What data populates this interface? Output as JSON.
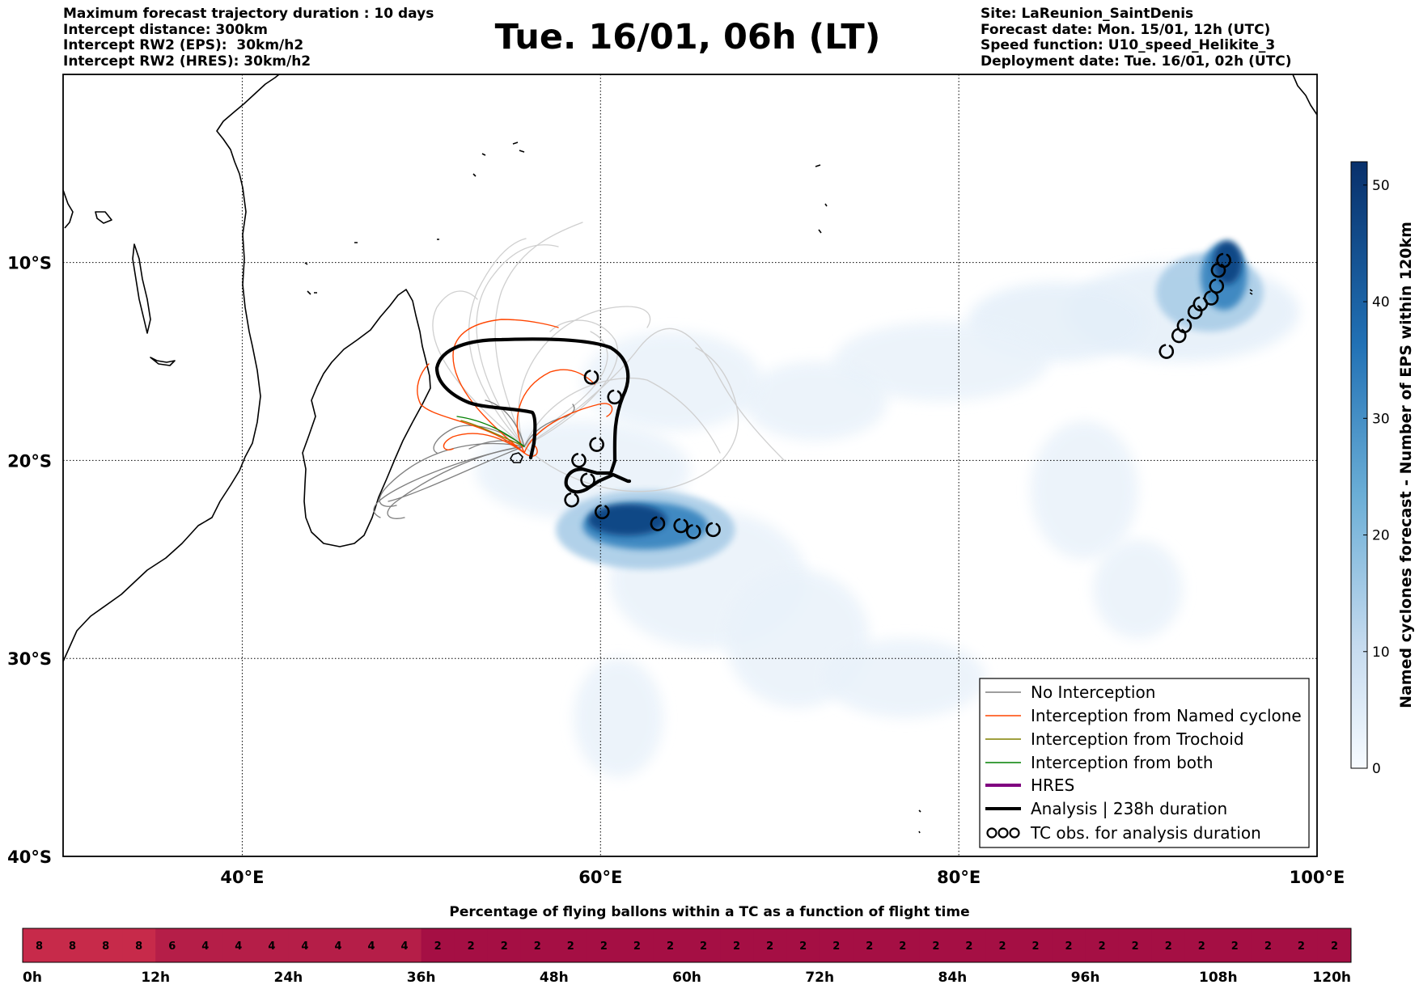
{
  "header_left": [
    "Maximum forecast trajectory duration : 10 days",
    "Intercept distance: 300km",
    "Intercept RW2 (EPS):  30km/h2",
    "Intercept RW2 (HRES): 30km/h2"
  ],
  "header_right": [
    "Site: LaReunion_SaintDenis",
    "Forecast date: Mon. 15/01, 12h (UTC)",
    "Speed function: U10_speed_Helikite_3",
    "Deployment date: Tue. 16/01, 02h (UTC)"
  ],
  "title": "Tue. 16/01, 06h (LT)",
  "colors": {
    "no_interception": "#7f7f7f",
    "named_cyclone": "#ff4500",
    "trochoid": "#808000",
    "both": "#008000",
    "hres": "#800080",
    "analysis": "#000000",
    "density_low": "#dbe9f6",
    "density_high": "#08306b",
    "bar_high": "#c72a4a",
    "bar_mid": "#b51e48",
    "bar_low": "#a50f44"
  },
  "chart_data": [
    {
      "type": "heatmap",
      "xlabel": "",
      "ylabel": "",
      "x_ticks": [
        "40°E",
        "60°E",
        "80°E",
        "100°E"
      ],
      "y_ticks": [
        "10°S",
        "20°S",
        "30°S",
        "40°S"
      ],
      "xlim": [
        30,
        100
      ],
      "ylim": [
        -40,
        -0.5
      ],
      "grid": true,
      "colorbar": {
        "label": "Named cyclones forecast - Number of EPS within 120km",
        "ticks": [
          "0",
          "10",
          "20",
          "30",
          "40",
          "50"
        ],
        "range": [
          0,
          52
        ]
      },
      "density_blobs": [
        {
          "lon": 92.5,
          "lat": -12.5,
          "rx": 6.5,
          "ry": 2.5,
          "value": 4
        },
        {
          "lon": 85.5,
          "lat": -13.0,
          "rx": 5.0,
          "ry": 2.0,
          "value": 4
        },
        {
          "lon": 79.0,
          "lat": -15.0,
          "rx": 6.0,
          "ry": 2.0,
          "value": 3
        },
        {
          "lon": 72.0,
          "lat": -17.0,
          "rx": 4.0,
          "ry": 2.0,
          "value": 3
        },
        {
          "lon": 64.0,
          "lat": -16.0,
          "rx": 5.0,
          "ry": 2.5,
          "value": 3
        },
        {
          "lon": 59.0,
          "lat": -20.5,
          "rx": 6.0,
          "ry": 2.5,
          "value": 3
        },
        {
          "lon": 66.0,
          "lat": -26.0,
          "rx": 5.5,
          "ry": 3.5,
          "value": 3
        },
        {
          "lon": 71.0,
          "lat": -29.0,
          "rx": 4.0,
          "ry": 3.5,
          "value": 3
        },
        {
          "lon": 77.0,
          "lat": -31.0,
          "rx": 4.5,
          "ry": 2.0,
          "value": 3
        },
        {
          "lon": 87.0,
          "lat": -21.5,
          "rx": 3.0,
          "ry": 3.5,
          "value": 3
        },
        {
          "lon": 90.0,
          "lat": -26.5,
          "rx": 2.5,
          "ry": 2.5,
          "value": 3
        },
        {
          "lon": 61.0,
          "lat": -33.0,
          "rx": 2.5,
          "ry": 3.0,
          "value": 3
        },
        {
          "lon": 62.5,
          "lat": -23.5,
          "rx": 5.0,
          "ry": 2.0,
          "value": 14
        },
        {
          "lon": 94.0,
          "lat": -11.5,
          "rx": 3.0,
          "ry": 2.0,
          "value": 14
        },
        {
          "lon": 62.5,
          "lat": -23.3,
          "rx": 3.5,
          "ry": 1.2,
          "value": 32
        },
        {
          "lon": 94.8,
          "lat": -10.7,
          "rx": 1.3,
          "ry": 1.7,
          "value": 32
        },
        {
          "lon": 61.5,
          "lat": -23.0,
          "rx": 2.2,
          "ry": 0.8,
          "value": 47
        },
        {
          "lon": 95.0,
          "lat": -10.0,
          "rx": 0.8,
          "ry": 1.1,
          "value": 47
        }
      ],
      "series": [
        {
          "name": "No Interception"
        },
        {
          "name": "Interception from Named cyclone"
        },
        {
          "name": "Interception from Trochoid"
        },
        {
          "name": "Interception from both"
        },
        {
          "name": "HRES"
        },
        {
          "name": "Analysis | 238h duration"
        },
        {
          "name": "TC obs. for analysis duration"
        }
      ],
      "tc_observations": [
        [
          59.5,
          -15.8
        ],
        [
          60.8,
          -16.8
        ],
        [
          59.8,
          -19.2
        ],
        [
          58.8,
          -20.0
        ],
        [
          59.3,
          -21.0
        ],
        [
          58.4,
          -22.0
        ],
        [
          60.1,
          -22.6
        ],
        [
          63.2,
          -23.2
        ],
        [
          64.5,
          -23.3
        ],
        [
          65.2,
          -23.6
        ],
        [
          66.3,
          -23.5
        ],
        [
          91.6,
          -14.5
        ],
        [
          92.3,
          -13.7
        ],
        [
          92.6,
          -13.2
        ],
        [
          93.2,
          -12.5
        ],
        [
          93.5,
          -12.1
        ],
        [
          94.1,
          -11.8
        ],
        [
          94.4,
          -11.2
        ],
        [
          94.5,
          -10.4
        ],
        [
          94.8,
          -9.9
        ]
      ],
      "legend_position": "lower-right"
    },
    {
      "type": "table",
      "title": "Percentage of flying ballons within a TC as a function of flight time",
      "values": [
        8,
        8,
        8,
        8,
        6,
        4,
        4,
        4,
        4,
        4,
        4,
        4,
        2,
        2,
        2,
        2,
        2,
        2,
        2,
        2,
        2,
        2,
        2,
        2,
        2,
        2,
        2,
        2,
        2,
        2,
        2,
        2,
        2,
        2,
        2,
        2,
        2,
        2,
        2,
        2
      ],
      "ticks": [
        "0h",
        "12h",
        "24h",
        "36h",
        "48h",
        "60h",
        "72h",
        "84h",
        "96h",
        "108h",
        "120h"
      ]
    }
  ]
}
